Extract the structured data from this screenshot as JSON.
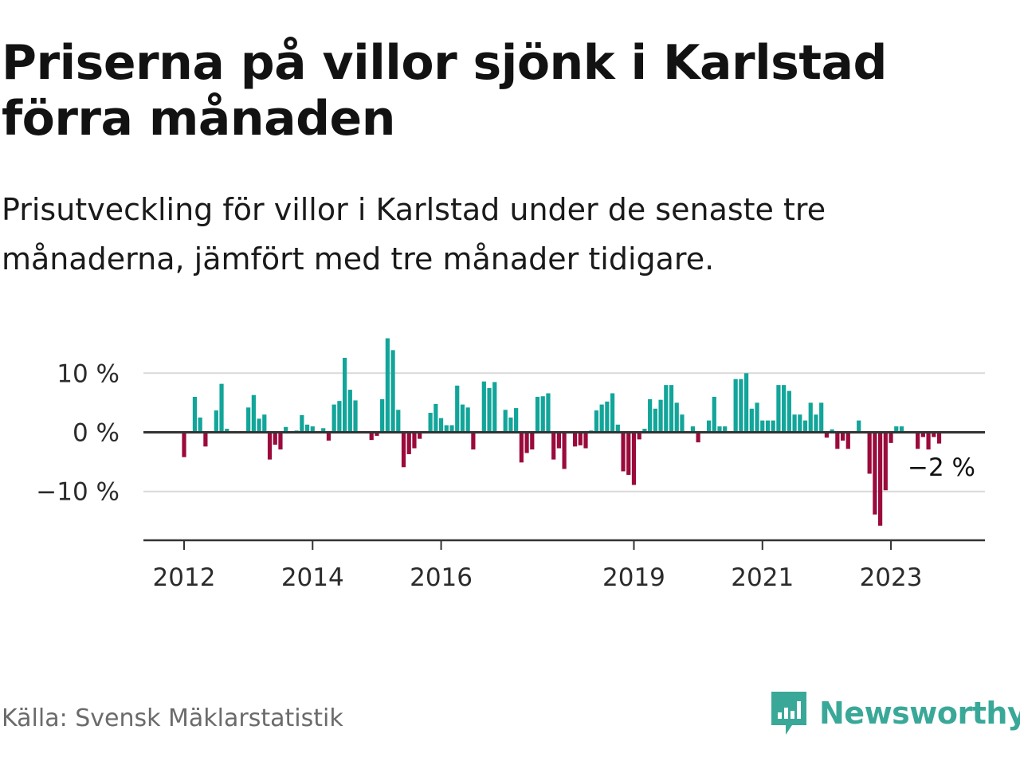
{
  "title": "Priserna på villor sjönk i Karlstad förra månaden",
  "subtitle": "Prisutveckling för villor i Karlstad under de senaste tre månaderna, jämfört med tre månader tidigare.",
  "source": "Källa: Svensk Mäklarstatistik",
  "brand": {
    "name": "Newsworthy",
    "icon": "newsworthy-logo-icon",
    "color": "#3aa898"
  },
  "colors": {
    "positive": "#12a59a",
    "negative": "#9b0a3c",
    "grid": "#d9d9d9",
    "axis": "#333333"
  },
  "chart_data": {
    "type": "bar",
    "title": "",
    "xlabel": "",
    "ylabel": "",
    "ylim": [
      -18,
      17
    ],
    "y_ticks": [
      {
        "value": 10,
        "label": "10 %"
      },
      {
        "value": 0,
        "label": "0 %"
      },
      {
        "value": -10,
        "label": "−10 %"
      }
    ],
    "x_ticks": [
      {
        "date": "2012-01",
        "label": "2012"
      },
      {
        "date": "2014-01",
        "label": "2014"
      },
      {
        "date": "2016-01",
        "label": "2016"
      },
      {
        "date": "2019-01",
        "label": "2019"
      },
      {
        "date": "2021-01",
        "label": "2021"
      },
      {
        "date": "2023-01",
        "label": "2023"
      }
    ],
    "grid": true,
    "end_label": "−2 %",
    "x_range": [
      "2011-06",
      "2024-09"
    ],
    "series": [
      {
        "values": [
          {
            "date": "2012-01",
            "value": -4.2
          },
          {
            "date": "2012-03",
            "value": 6.0
          },
          {
            "date": "2012-04",
            "value": 2.5
          },
          {
            "date": "2012-05",
            "value": -2.4
          },
          {
            "date": "2012-07",
            "value": 3.7
          },
          {
            "date": "2012-08",
            "value": 8.2
          },
          {
            "date": "2012-09",
            "value": 0.6
          },
          {
            "date": "2013-01",
            "value": 4.2
          },
          {
            "date": "2013-02",
            "value": 6.3
          },
          {
            "date": "2013-03",
            "value": 2.3
          },
          {
            "date": "2013-04",
            "value": 3.0
          },
          {
            "date": "2013-05",
            "value": -4.6
          },
          {
            "date": "2013-06",
            "value": -2.1
          },
          {
            "date": "2013-07",
            "value": -2.9
          },
          {
            "date": "2013-08",
            "value": 0.9
          },
          {
            "date": "2013-10",
            "value": 0.3
          },
          {
            "date": "2013-11",
            "value": 2.9
          },
          {
            "date": "2013-12",
            "value": 1.3
          },
          {
            "date": "2014-01",
            "value": 1.0
          },
          {
            "date": "2014-03",
            "value": 0.7
          },
          {
            "date": "2014-04",
            "value": -1.4
          },
          {
            "date": "2014-05",
            "value": 4.7
          },
          {
            "date": "2014-06",
            "value": 5.3
          },
          {
            "date": "2014-07",
            "value": 12.6
          },
          {
            "date": "2014-08",
            "value": 7.2
          },
          {
            "date": "2014-09",
            "value": 5.4
          },
          {
            "date": "2014-12",
            "value": -1.3
          },
          {
            "date": "2015-01",
            "value": -0.6
          },
          {
            "date": "2015-02",
            "value": 5.6
          },
          {
            "date": "2015-03",
            "value": 15.9
          },
          {
            "date": "2015-04",
            "value": 13.9
          },
          {
            "date": "2015-05",
            "value": 3.8
          },
          {
            "date": "2015-06",
            "value": -5.9
          },
          {
            "date": "2015-07",
            "value": -3.7
          },
          {
            "date": "2015-08",
            "value": -2.7
          },
          {
            "date": "2015-09",
            "value": -1.1
          },
          {
            "date": "2015-11",
            "value": 3.3
          },
          {
            "date": "2015-12",
            "value": 4.8
          },
          {
            "date": "2016-01",
            "value": 2.4
          },
          {
            "date": "2016-02",
            "value": 1.2
          },
          {
            "date": "2016-03",
            "value": 1.2
          },
          {
            "date": "2016-04",
            "value": 7.9
          },
          {
            "date": "2016-05",
            "value": 4.7
          },
          {
            "date": "2016-06",
            "value": 4.2
          },
          {
            "date": "2016-07",
            "value": -2.9
          },
          {
            "date": "2016-09",
            "value": 8.6
          },
          {
            "date": "2016-10",
            "value": 7.5
          },
          {
            "date": "2016-11",
            "value": 8.5
          },
          {
            "date": "2017-01",
            "value": 3.8
          },
          {
            "date": "2017-02",
            "value": 2.5
          },
          {
            "date": "2017-03",
            "value": 4.1
          },
          {
            "date": "2017-04",
            "value": -5.1
          },
          {
            "date": "2017-05",
            "value": -3.5
          },
          {
            "date": "2017-06",
            "value": -2.9
          },
          {
            "date": "2017-07",
            "value": 6.0
          },
          {
            "date": "2017-08",
            "value": 6.1
          },
          {
            "date": "2017-09",
            "value": 6.6
          },
          {
            "date": "2017-10",
            "value": -4.6
          },
          {
            "date": "2017-11",
            "value": -2.7
          },
          {
            "date": "2017-12",
            "value": -6.2
          },
          {
            "date": "2018-02",
            "value": -2.4
          },
          {
            "date": "2018-03",
            "value": -2.2
          },
          {
            "date": "2018-04",
            "value": -2.7
          },
          {
            "date": "2018-05",
            "value": 0.3
          },
          {
            "date": "2018-06",
            "value": 3.7
          },
          {
            "date": "2018-07",
            "value": 4.7
          },
          {
            "date": "2018-08",
            "value": 5.2
          },
          {
            "date": "2018-09",
            "value": 6.6
          },
          {
            "date": "2018-10",
            "value": 1.3
          },
          {
            "date": "2018-11",
            "value": -6.6
          },
          {
            "date": "2018-12",
            "value": -7.2
          },
          {
            "date": "2019-01",
            "value": -8.9
          },
          {
            "date": "2019-02",
            "value": -1.2
          },
          {
            "date": "2019-03",
            "value": 0.6
          },
          {
            "date": "2019-04",
            "value": 5.6
          },
          {
            "date": "2019-05",
            "value": 4.0
          },
          {
            "date": "2019-06",
            "value": 5.5
          },
          {
            "date": "2019-07",
            "value": 8.0
          },
          {
            "date": "2019-08",
            "value": 8.0
          },
          {
            "date": "2019-09",
            "value": 5.0
          },
          {
            "date": "2019-10",
            "value": 3.0
          },
          {
            "date": "2019-12",
            "value": 1.0
          },
          {
            "date": "2020-01",
            "value": -1.7
          },
          {
            "date": "2020-03",
            "value": 2.0
          },
          {
            "date": "2020-04",
            "value": 6.0
          },
          {
            "date": "2020-05",
            "value": 1.0
          },
          {
            "date": "2020-06",
            "value": 1.0
          },
          {
            "date": "2020-08",
            "value": 9.0
          },
          {
            "date": "2020-09",
            "value": 9.0
          },
          {
            "date": "2020-10",
            "value": 10.0
          },
          {
            "date": "2020-11",
            "value": 4.0
          },
          {
            "date": "2020-12",
            "value": 5.0
          },
          {
            "date": "2021-01",
            "value": 2.0
          },
          {
            "date": "2021-02",
            "value": 2.0
          },
          {
            "date": "2021-03",
            "value": 2.0
          },
          {
            "date": "2021-04",
            "value": 8.0
          },
          {
            "date": "2021-05",
            "value": 8.0
          },
          {
            "date": "2021-06",
            "value": 7.0
          },
          {
            "date": "2021-07",
            "value": 3.0
          },
          {
            "date": "2021-08",
            "value": 3.0
          },
          {
            "date": "2021-09",
            "value": 2.0
          },
          {
            "date": "2021-10",
            "value": 5.0
          },
          {
            "date": "2021-11",
            "value": 3.0
          },
          {
            "date": "2021-12",
            "value": 5.0
          },
          {
            "date": "2022-01",
            "value": -0.9
          },
          {
            "date": "2022-02",
            "value": 0.5
          },
          {
            "date": "2022-03",
            "value": -2.8
          },
          {
            "date": "2022-04",
            "value": -1.4
          },
          {
            "date": "2022-05",
            "value": -2.8
          },
          {
            "date": "2022-07",
            "value": 2.0
          },
          {
            "date": "2022-09",
            "value": -7.0
          },
          {
            "date": "2022-10",
            "value": -13.9
          },
          {
            "date": "2022-11",
            "value": -15.8
          },
          {
            "date": "2022-12",
            "value": -9.8
          },
          {
            "date": "2023-01",
            "value": -1.8
          },
          {
            "date": "2023-02",
            "value": 1.0
          },
          {
            "date": "2023-03",
            "value": 1.0
          },
          {
            "date": "2023-06",
            "value": -2.8
          },
          {
            "date": "2023-07",
            "value": -0.8
          },
          {
            "date": "2023-08",
            "value": -2.9
          },
          {
            "date": "2023-09",
            "value": -0.8
          },
          {
            "date": "2023-10",
            "value": -1.9
          }
        ]
      }
    ]
  }
}
